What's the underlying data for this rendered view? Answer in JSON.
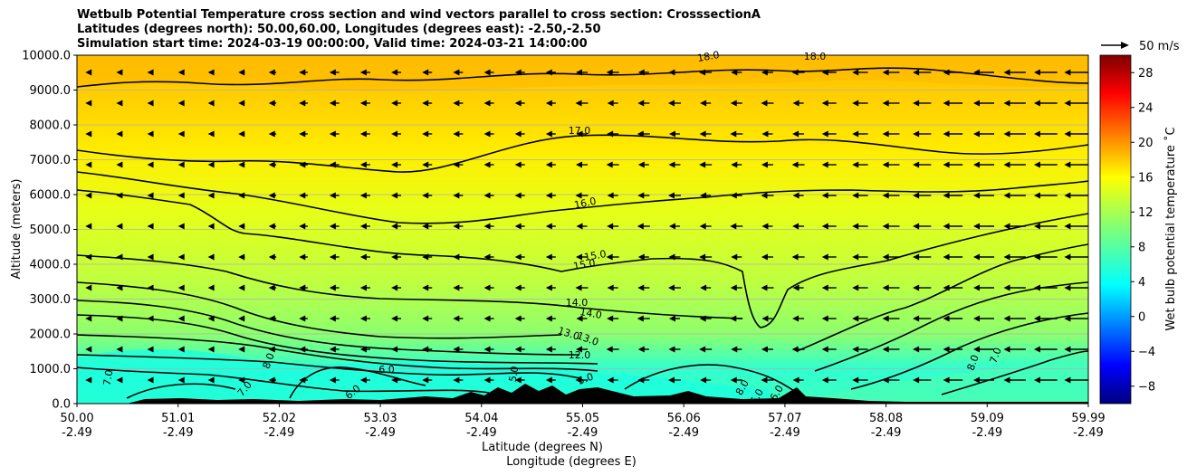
{
  "title_lines": [
    "Wetbulb Potential Temperature cross section and wind vectors parallel to cross section: CrosssectionA",
    "Latitudes (degrees north): 50.00,60.00, Longitudes (degrees east): -2.50,-2.50",
    "Simulation start time: 2024-03-19 00:00:00, Valid time: 2024-03-21 14:00:00"
  ],
  "quiver_key": "50 m/s",
  "chart_data": {
    "type": "heatmap",
    "ylabel": "Altitude (meters)",
    "xlabel": "Latitude (degrees N)",
    "xlabel2": "Longitude (degrees E)",
    "ylim": [
      0,
      10000
    ],
    "yticks": [
      "0.0",
      "1000.0",
      "2000.0",
      "3000.0",
      "4000.0",
      "5000.0",
      "6000.0",
      "7000.0",
      "8000.0",
      "9000.0",
      "10000.0"
    ],
    "xticks": [
      {
        "lat": "50.00",
        "lon": "-2.49"
      },
      {
        "lat": "51.01",
        "lon": "-2.49"
      },
      {
        "lat": "52.02",
        "lon": "-2.49"
      },
      {
        "lat": "53.03",
        "lon": "-2.49"
      },
      {
        "lat": "54.04",
        "lon": "-2.49"
      },
      {
        "lat": "55.05",
        "lon": "-2.49"
      },
      {
        "lat": "56.06",
        "lon": "-2.49"
      },
      {
        "lat": "57.07",
        "lon": "-2.49"
      },
      {
        "lat": "58.08",
        "lon": "-2.49"
      },
      {
        "lat": "59.09",
        "lon": "-2.49"
      },
      {
        "lat": "59.99",
        "lon": "-2.49"
      }
    ],
    "grid": "horizontal",
    "colorbar": {
      "label": "Wet bulb potential temperature ˚C",
      "range": [
        -10,
        30
      ],
      "ticks": [
        "−8",
        "−4",
        "0",
        "4",
        "8",
        "12",
        "16",
        "20",
        "24",
        "28"
      ],
      "colormap": "jet"
    },
    "contour_labels": [
      "18.0",
      "18.0",
      "17.0",
      "16.0",
      "15.0",
      "15.0",
      "14.0",
      "14.0",
      "13.0",
      "13.0",
      "12.0",
      "6.0",
      "6.0",
      "7.0",
      "7.0",
      "8.0",
      "8.0",
      "8.0",
      "7.0",
      "6.0",
      "6.0",
      "5.0",
      "5.0"
    ]
  }
}
